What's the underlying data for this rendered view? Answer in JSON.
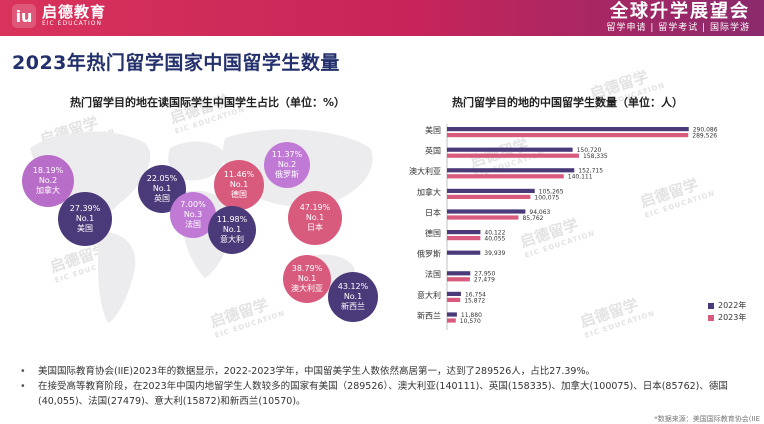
{
  "header": {
    "logo_cn": "启德教育",
    "logo_en": "EIC EDUCATION",
    "brand_title": "全球升学展望会",
    "brand_sub": "留学申请 | 留学考试 | 国际学游"
  },
  "page_title": "2023年热门留学国家中国留学生数量",
  "left_title": "热门留学目的地在读国际学生中国学生占比（单位：%）",
  "right_title": "热门留学目的地的中国留学生数量（单位：人）",
  "bubbles": [
    {
      "pct": "18.19%",
      "rank": "No.2",
      "country": "加拿大",
      "color": "purple"
    },
    {
      "pct": "27.39%",
      "rank": "No.1",
      "country": "美国",
      "color": "navy"
    },
    {
      "pct": "22.05%",
      "rank": "No.1",
      "country": "英国",
      "color": "navy"
    },
    {
      "pct": "7.00%",
      "rank": "No.3",
      "country": "法国",
      "color": "lightpurple"
    },
    {
      "pct": "11.46%",
      "rank": "No.1",
      "country": "德国",
      "color": "pink"
    },
    {
      "pct": "11.98%",
      "rank": "No.1",
      "country": "意大利",
      "color": "navy"
    },
    {
      "pct": "11.37%",
      "rank": "No.2",
      "country": "俄罗斯",
      "color": "lightpurple"
    },
    {
      "pct": "47.19%",
      "rank": "No.1",
      "country": "日本",
      "color": "pink"
    },
    {
      "pct": "38.79%",
      "rank": "No.1",
      "country": "澳大利亚",
      "color": "pink"
    },
    {
      "pct": "43.12%",
      "rank": "No.1",
      "country": "新西兰",
      "color": "navy"
    }
  ],
  "chart_data": {
    "type": "bar",
    "orientation": "horizontal",
    "categories": [
      "美国",
      "英国",
      "澳大利亚",
      "加拿大",
      "日本",
      "德国",
      "俄罗斯",
      "法国",
      "意大利",
      "新西兰"
    ],
    "series": [
      {
        "name": "2022年",
        "color": "#4b3a7a",
        "values": [
          290086,
          150720,
          152715,
          105265,
          94063,
          40122,
          39939,
          27950,
          16754,
          11880
        ]
      },
      {
        "name": "2023年",
        "color": "#d85b7d",
        "values": [
          289526,
          158335,
          140111,
          100075,
          85762,
          40055,
          null,
          27479,
          15872,
          10570
        ]
      }
    ],
    "value_labels": {
      "2022年": [
        "290,086",
        "150,720",
        "152,715",
        "105,265",
        "94,063",
        "40,122",
        "39,939",
        "27,950",
        "16,754",
        "11,880"
      ],
      "2023年": [
        "289,526",
        "158,335",
        "140,111",
        "100,075",
        "85,762",
        "40,055",
        "",
        "27,479",
        "15,872",
        "10,570"
      ]
    },
    "xlim": [
      0,
      300000
    ],
    "legend_position": "bottom-right",
    "grid": false
  },
  "notes": [
    "美国国际教育协会(IIE)2023年的数据显示，2022-2023学年，中国留美学生人数依然高居第一，达到了289526人，占比27.39%。",
    "在接受高等教育阶段，在2023年中国内地留学生人数较多的国家有美国（289526）、澳大利亚(140111)、英国(158335)、加拿大(100075)、日本(85762)、德国(40,055)、法国(27479)、意大利(15872)和新西兰(10570)。"
  ],
  "source": "*数据来源：美国国际教育协会(IIE",
  "watermark": {
    "cn": "启德留学",
    "en": "EIC EDUCATION"
  },
  "colors": {
    "header_pink": "#d9335b",
    "title_navy": "#23306b",
    "series_2022": "#4b3a7a",
    "series_2023": "#d85b7d"
  }
}
